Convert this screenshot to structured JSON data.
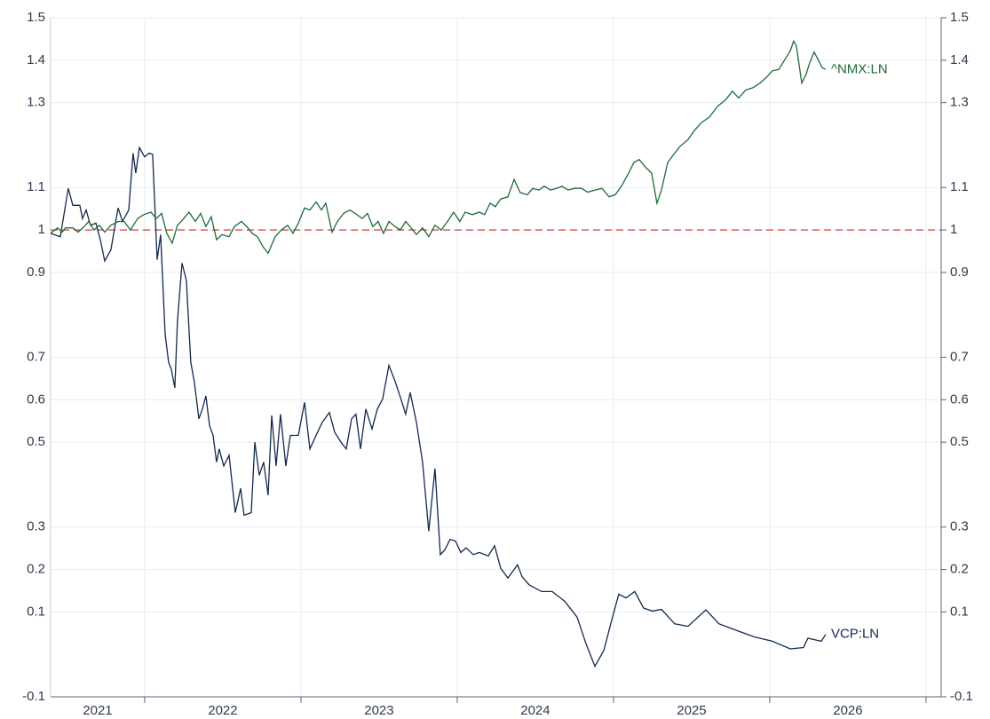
{
  "chart_data": {
    "type": "line",
    "xlim": [
      2021.398,
      2027.097
    ],
    "xticks": [
      2022,
      2023,
      2024,
      2025,
      2026,
      2027
    ],
    "year_labels": [
      2021,
      2022,
      2023,
      2024,
      2025,
      2026
    ],
    "ylim": [
      -0.1,
      1.5
    ],
    "yticks": [
      -0.1,
      0.1,
      0.2,
      0.3,
      0.5,
      0.6,
      0.7,
      0.9,
      1.0,
      1.1,
      1.3,
      1.4,
      1.5
    ],
    "grid": true,
    "hline": {
      "value": 1.0,
      "color": "#d62728"
    },
    "series": [
      {
        "name": "VCP:LN",
        "color": "#13294f",
        "x": [
          2021.398,
          2021.46,
          2021.511,
          2021.54,
          2021.585,
          2021.602,
          2021.625,
          2021.653,
          2021.688,
          2021.716,
          2021.744,
          2021.784,
          2021.83,
          2021.858,
          2021.898,
          2021.926,
          2021.943,
          2021.966,
          2022.0,
          2022.028,
          2022.051,
          2022.08,
          2022.102,
          2022.131,
          2022.153,
          2022.17,
          2022.193,
          2022.21,
          2022.239,
          2022.267,
          2022.295,
          2022.318,
          2022.347,
          2022.369,
          2022.392,
          2022.415,
          2022.438,
          2022.46,
          2022.477,
          2022.506,
          2022.54,
          2022.58,
          2022.614,
          2022.636,
          2022.682,
          2022.705,
          2022.733,
          2022.761,
          2022.79,
          2022.813,
          2022.841,
          2022.869,
          2022.903,
          2022.932,
          2022.983,
          2023.023,
          2023.057,
          2023.097,
          2023.136,
          2023.182,
          2023.216,
          2023.256,
          2023.29,
          2023.324,
          2023.352,
          2023.381,
          2023.415,
          2023.455,
          2023.489,
          2023.523,
          2023.563,
          2023.602,
          2023.636,
          2023.67,
          2023.699,
          2023.739,
          2023.778,
          2023.818,
          2023.858,
          2023.892,
          2023.92,
          2023.955,
          2023.989,
          2024.023,
          2024.057,
          2024.102,
          2024.142,
          2024.199,
          2024.239,
          2024.278,
          2024.324,
          2024.386,
          2024.415,
          2024.46,
          2024.54,
          2024.608,
          2024.688,
          2024.767,
          2024.824,
          2024.881,
          2024.938,
          2024.994,
          2025.034,
          2025.08,
          2025.136,
          2025.193,
          2025.25,
          2025.307,
          2025.392,
          2025.477,
          2025.591,
          2025.676,
          2025.79,
          2025.903,
          2026.017,
          2026.131,
          2026.216,
          2026.244,
          2026.33,
          2026.358
        ],
        "values": [
          0.992,
          0.984,
          1.098,
          1.058,
          1.058,
          1.027,
          1.047,
          1.011,
          1.016,
          0.977,
          0.927,
          0.953,
          1.052,
          1.02,
          1.047,
          1.181,
          1.134,
          1.194,
          1.172,
          1.181,
          1.178,
          0.93,
          0.989,
          0.754,
          0.688,
          0.672,
          0.628,
          0.786,
          0.922,
          0.881,
          0.688,
          0.641,
          0.555,
          0.578,
          0.609,
          0.539,
          0.516,
          0.453,
          0.484,
          0.444,
          0.469,
          0.334,
          0.391,
          0.328,
          0.334,
          0.5,
          0.422,
          0.453,
          0.375,
          0.563,
          0.444,
          0.566,
          0.444,
          0.516,
          0.516,
          0.594,
          0.484,
          0.516,
          0.547,
          0.57,
          0.523,
          0.5,
          0.484,
          0.555,
          0.566,
          0.484,
          0.578,
          0.531,
          0.578,
          0.602,
          0.681,
          0.644,
          0.606,
          0.566,
          0.617,
          0.547,
          0.453,
          0.29,
          0.438,
          0.235,
          0.246,
          0.271,
          0.267,
          0.24,
          0.251,
          0.235,
          0.24,
          0.232,
          0.256,
          0.203,
          0.18,
          0.211,
          0.183,
          0.164,
          0.148,
          0.148,
          0.125,
          0.088,
          0.025,
          -0.028,
          0.009,
          0.088,
          0.142,
          0.133,
          0.148,
          0.109,
          0.102,
          0.106,
          0.072,
          0.066,
          0.105,
          0.072,
          0.056,
          0.041,
          0.031,
          0.013,
          0.016,
          0.038,
          0.031,
          0.047
        ]
      },
      {
        "name": "^NMX:LN",
        "color": "#1e6b35",
        "x": [
          2021.398,
          2021.443,
          2021.472,
          2021.494,
          2021.54,
          2021.574,
          2021.614,
          2021.642,
          2021.676,
          2021.71,
          2021.744,
          2021.784,
          2021.83,
          2021.869,
          2021.909,
          2021.955,
          2021.994,
          2022.04,
          2022.074,
          2022.108,
          2022.142,
          2022.176,
          2022.21,
          2022.25,
          2022.284,
          2022.324,
          2022.358,
          2022.392,
          2022.426,
          2022.46,
          2022.494,
          2022.54,
          2022.574,
          2022.619,
          2022.653,
          2022.688,
          2022.722,
          2022.756,
          2022.79,
          2022.835,
          2022.875,
          2022.915,
          2022.949,
          2022.983,
          2023.023,
          2023.057,
          2023.097,
          2023.131,
          2023.159,
          2023.199,
          2023.233,
          2023.273,
          2023.313,
          2023.347,
          2023.392,
          2023.426,
          2023.46,
          2023.494,
          2023.528,
          2023.563,
          2023.602,
          2023.636,
          2023.67,
          2023.705,
          2023.739,
          2023.778,
          2023.818,
          2023.858,
          2023.898,
          2023.938,
          2023.977,
          2024.017,
          2024.051,
          2024.097,
          2024.142,
          2024.176,
          2024.21,
          2024.244,
          2024.278,
          2024.324,
          2024.364,
          2024.403,
          2024.449,
          2024.483,
          2024.523,
          2024.557,
          2024.597,
          2024.636,
          2024.67,
          2024.71,
          2024.75,
          2024.795,
          2024.835,
          2024.881,
          2024.926,
          2024.972,
          2025.011,
          2025.051,
          2025.097,
          2025.131,
          2025.165,
          2025.199,
          2025.244,
          2025.278,
          2025.307,
          2025.347,
          2025.392,
          2025.426,
          2025.477,
          2025.517,
          2025.563,
          2025.614,
          2025.665,
          2025.716,
          2025.761,
          2025.801,
          2025.847,
          2025.892,
          2025.938,
          2025.977,
          2026.017,
          2026.057,
          2026.091,
          2026.131,
          2026.153,
          2026.17,
          2026.205,
          2026.233,
          2026.256,
          2026.284,
          2026.307,
          2026.335,
          2026.358
        ],
        "values": [
          0.992,
          1.005,
          0.995,
          1.005,
          1.005,
          0.995,
          1.008,
          1.02,
          1.0,
          1.011,
          0.995,
          1.011,
          1.02,
          1.02,
          1.0,
          1.027,
          1.036,
          1.042,
          1.027,
          1.039,
          0.992,
          0.969,
          1.011,
          1.027,
          1.042,
          1.02,
          1.039,
          1.008,
          1.031,
          0.977,
          0.989,
          0.984,
          1.008,
          1.02,
          1.008,
          0.992,
          0.984,
          0.961,
          0.945,
          0.984,
          1.0,
          1.011,
          0.992,
          1.016,
          1.052,
          1.047,
          1.066,
          1.047,
          1.063,
          0.995,
          1.02,
          1.039,
          1.047,
          1.039,
          1.027,
          1.039,
          1.008,
          1.02,
          0.992,
          1.02,
          1.008,
          1.0,
          1.02,
          1.005,
          0.989,
          1.005,
          0.984,
          1.011,
          1.0,
          1.02,
          1.042,
          1.02,
          1.042,
          1.036,
          1.042,
          1.036,
          1.063,
          1.055,
          1.073,
          1.078,
          1.119,
          1.088,
          1.083,
          1.098,
          1.094,
          1.103,
          1.094,
          1.098,
          1.103,
          1.094,
          1.098,
          1.098,
          1.089,
          1.094,
          1.098,
          1.078,
          1.083,
          1.103,
          1.134,
          1.159,
          1.166,
          1.15,
          1.134,
          1.063,
          1.094,
          1.159,
          1.181,
          1.197,
          1.213,
          1.234,
          1.253,
          1.266,
          1.291,
          1.306,
          1.327,
          1.311,
          1.33,
          1.335,
          1.346,
          1.359,
          1.375,
          1.378,
          1.398,
          1.422,
          1.445,
          1.434,
          1.346,
          1.367,
          1.394,
          1.419,
          1.403,
          1.383,
          1.378
        ]
      }
    ]
  }
}
